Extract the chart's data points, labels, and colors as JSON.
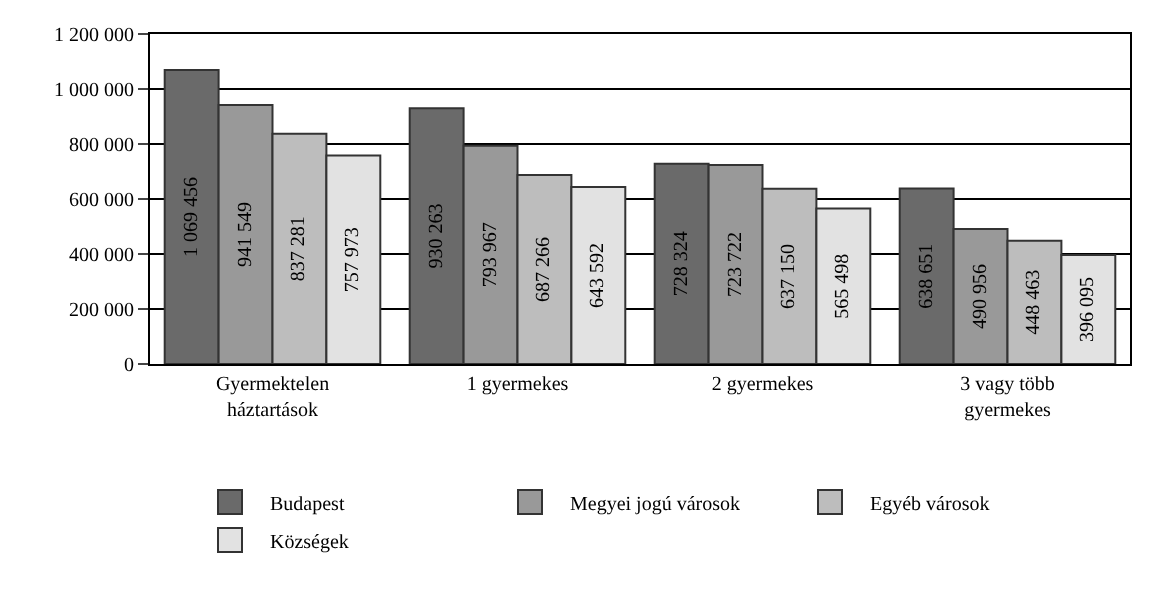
{
  "chart_data": {
    "type": "bar",
    "categories": [
      "Gyermektelen\nháztartások",
      "1 gyermekes",
      "2 gyermekes",
      "3 vagy több\ngyermekes"
    ],
    "series": [
      {
        "name": "Budapest",
        "color": "#6a6a6a",
        "values": [
          1069456,
          930263,
          728324,
          638651
        ],
        "value_labels": [
          "1 069 456",
          "930 263",
          "728 324",
          "638 651"
        ]
      },
      {
        "name": "Megyei jogú városok",
        "color": "#999999",
        "values": [
          941549,
          793967,
          723722,
          490956
        ],
        "value_labels": [
          "941 549",
          "793 967",
          "723 722",
          "490 956"
        ]
      },
      {
        "name": "Egyéb városok",
        "color": "#bdbdbd",
        "values": [
          837281,
          687266,
          637150,
          448463
        ],
        "value_labels": [
          "837 281",
          "687 266",
          "637 150",
          "448 463"
        ]
      },
      {
        "name": "Községek",
        "color": "#e2e2e2",
        "values": [
          757973,
          643592,
          565498,
          396095
        ],
        "value_labels": [
          "757 973",
          "643 592",
          "565 498",
          "396 095"
        ]
      }
    ],
    "ylim": [
      0,
      1200000
    ],
    "yticks": [
      {
        "value": 0,
        "label": "0"
      },
      {
        "value": 200000,
        "label": "200 000"
      },
      {
        "value": 400000,
        "label": "400 000"
      },
      {
        "value": 600000,
        "label": "600 000"
      },
      {
        "value": 800000,
        "label": "800 000"
      },
      {
        "value": 1000000,
        "label": "1 000 000"
      },
      {
        "value": 1200000,
        "label": "1 200 000"
      }
    ],
    "grid": "y",
    "legend": "bottom"
  }
}
